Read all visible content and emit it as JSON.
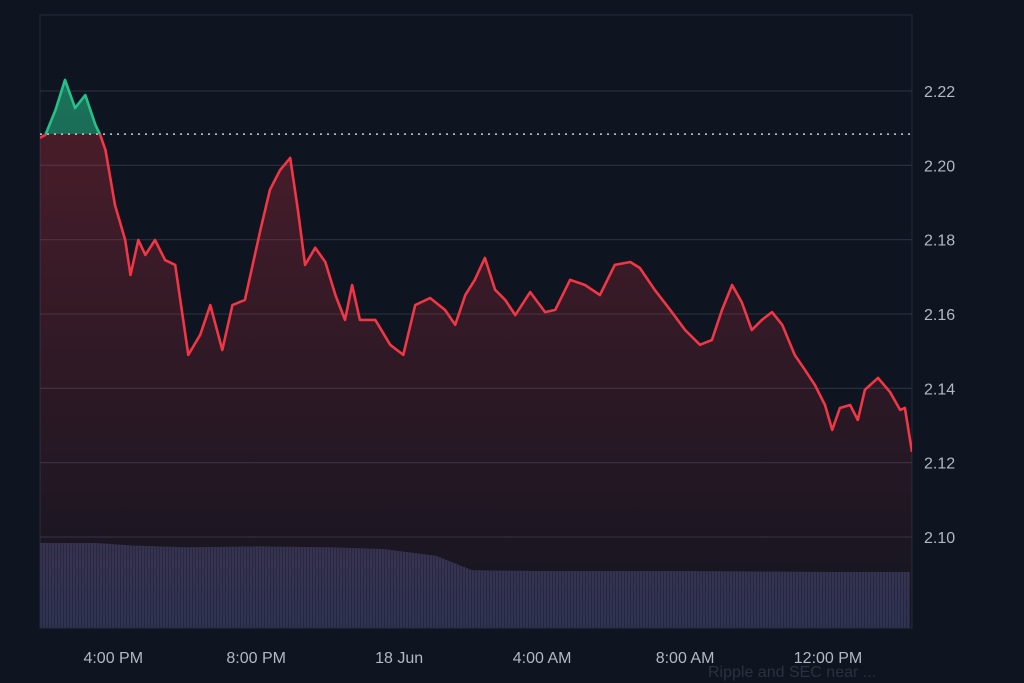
{
  "chart_data": {
    "type": "area",
    "baseline": 2.2084,
    "ylim": [
      2.075,
      2.24
    ],
    "y_ticks": [
      "2.22",
      "2.20",
      "2.18",
      "2.16",
      "2.14",
      "2.12",
      "2.10"
    ],
    "x_ticks": [
      {
        "label": "4:00 PM",
        "time": "17 Jun 16:00"
      },
      {
        "label": "8:00 PM",
        "time": "17 Jun 20:00"
      },
      {
        "label": "18 Jun",
        "time": "18 Jun 00:00"
      },
      {
        "label": "4:00 AM",
        "time": "18 Jun 04:00"
      },
      {
        "label": "8:00 AM",
        "time": "18 Jun 08:00"
      },
      {
        "label": "12:00 PM",
        "time": "18 Jun 12:00"
      }
    ],
    "xlim": [
      "17 Jun 13:57",
      "18 Jun 14:21"
    ],
    "grid": true,
    "colors": {
      "above": "#26c08a",
      "below": "#f23645",
      "volume": "#2b3352",
      "grid": "#262d3b",
      "baseline": "#c8ccd4"
    },
    "series": [
      {
        "points": [
          [
            "17 Jun 13:57",
            2.2074
          ],
          [
            "17 Jun 14:06",
            2.2082
          ],
          [
            "17 Jun 14:23",
            2.2149
          ],
          [
            "17 Jun 14:39",
            2.223
          ],
          [
            "17 Jun 14:56",
            2.2154
          ],
          [
            "17 Jun 15:13",
            2.2189
          ],
          [
            "17 Jun 15:30",
            2.2109
          ],
          [
            "17 Jun 15:38",
            2.2082
          ],
          [
            "17 Jun 15:47",
            2.2041
          ],
          [
            "17 Jun 16:03",
            2.1893
          ],
          [
            "17 Jun 16:20",
            2.1799
          ],
          [
            "17 Jun 16:29",
            2.1705
          ],
          [
            "17 Jun 16:42",
            2.1799
          ],
          [
            "17 Jun 16:54",
            2.1759
          ],
          [
            "17 Jun 17:10",
            2.1799
          ],
          [
            "17 Jun 17:27",
            2.1745
          ],
          [
            "17 Jun 17:44",
            2.1732
          ],
          [
            "17 Jun 18:06",
            2.149
          ],
          [
            "17 Jun 18:26",
            2.1544
          ],
          [
            "17 Jun 18:43",
            2.1624
          ],
          [
            "17 Jun 19:03",
            2.1503
          ],
          [
            "17 Jun 19:20",
            2.1624
          ],
          [
            "17 Jun 19:41",
            2.1638
          ],
          [
            "17 Jun 20:07",
            2.1826
          ],
          [
            "17 Jun 20:23",
            2.1934
          ],
          [
            "17 Jun 20:40",
            2.1987
          ],
          [
            "17 Jun 20:57",
            2.202
          ],
          [
            "17 Jun 21:10",
            2.188
          ],
          [
            "17 Jun 21:22",
            2.1732
          ],
          [
            "17 Jun 21:39",
            2.1778
          ],
          [
            "17 Jun 21:56",
            2.174
          ],
          [
            "17 Jun 22:13",
            2.1651
          ],
          [
            "17 Jun 22:29",
            2.1584
          ],
          [
            "17 Jun 22:41",
            2.1678
          ],
          [
            "17 Jun 22:54",
            2.1584
          ],
          [
            "17 Jun 23:20",
            2.1584
          ],
          [
            "17 Jun 23:45",
            2.1517
          ],
          [
            "18 Jun 00:07",
            2.149
          ],
          [
            "18 Jun 00:27",
            2.1624
          ],
          [
            "18 Jun 00:52",
            2.1643
          ],
          [
            "18 Jun 01:17",
            2.1611
          ],
          [
            "18 Jun 01:34",
            2.1571
          ],
          [
            "18 Jun 01:51",
            2.1651
          ],
          [
            "18 Jun 02:07",
            2.1692
          ],
          [
            "18 Jun 02:24",
            2.1751
          ],
          [
            "18 Jun 02:41",
            2.1665
          ],
          [
            "18 Jun 02:58",
            2.1638
          ],
          [
            "18 Jun 03:15",
            2.1597
          ],
          [
            "18 Jun 03:40",
            2.1659
          ],
          [
            "18 Jun 04:05",
            2.1605
          ],
          [
            "18 Jun 04:22",
            2.1611
          ],
          [
            "18 Jun 04:47",
            2.1692
          ],
          [
            "18 Jun 05:12",
            2.1678
          ],
          [
            "18 Jun 05:37",
            2.1651
          ],
          [
            "18 Jun 06:02",
            2.1732
          ],
          [
            "18 Jun 06:28",
            2.174
          ],
          [
            "18 Jun 06:44",
            2.1724
          ],
          [
            "18 Jun 07:09",
            2.1665
          ],
          [
            "18 Jun 07:35",
            2.1611
          ],
          [
            "18 Jun 08:00",
            2.1557
          ],
          [
            "18 Jun 08:25",
            2.1517
          ],
          [
            "18 Jun 08:45",
            2.153
          ],
          [
            "18 Jun 09:02",
            2.1611
          ],
          [
            "18 Jun 09:19",
            2.1678
          ],
          [
            "18 Jun 09:35",
            2.1632
          ],
          [
            "18 Jun 09:52",
            2.1557
          ],
          [
            "18 Jun 10:09",
            2.1584
          ],
          [
            "18 Jun 10:26",
            2.1605
          ],
          [
            "18 Jun 10:43",
            2.1571
          ],
          [
            "18 Jun 11:04",
            2.149
          ],
          [
            "18 Jun 11:21",
            2.145
          ],
          [
            "18 Jun 11:38",
            2.1409
          ],
          [
            "18 Jun 11:55",
            2.1355
          ],
          [
            "18 Jun 12:07",
            2.1288
          ],
          [
            "18 Jun 12:20",
            2.1347
          ],
          [
            "18 Jun 12:37",
            2.1355
          ],
          [
            "18 Jun 12:50",
            2.1315
          ],
          [
            "18 Jun 13:02",
            2.1396
          ],
          [
            "18 Jun 13:24",
            2.1428
          ],
          [
            "18 Jun 13:44",
            2.139
          ],
          [
            "18 Jun 14:01",
            2.1342
          ],
          [
            "18 Jun 14:09",
            2.1347
          ],
          [
            "18 Jun 14:21",
            2.1229
          ]
        ]
      }
    ],
    "volume_relative": [
      [
        "17 Jun 13:57",
        1.0
      ],
      [
        "17 Jun 15:30",
        1.0
      ],
      [
        "17 Jun 16:30",
        0.97
      ],
      [
        "17 Jun 18:00",
        0.95
      ],
      [
        "17 Jun 20:00",
        0.96
      ],
      [
        "17 Jun 22:00",
        0.95
      ],
      [
        "17 Jun 23:30",
        0.93
      ],
      [
        "18 Jun 01:00",
        0.85
      ],
      [
        "18 Jun 02:00",
        0.68
      ],
      [
        "18 Jun 04:00",
        0.67
      ],
      [
        "18 Jun 08:00",
        0.67
      ],
      [
        "18 Jun 12:00",
        0.66
      ],
      [
        "18 Jun 14:21",
        0.66
      ]
    ]
  },
  "news_caption": "Ripple and SEC near ..."
}
